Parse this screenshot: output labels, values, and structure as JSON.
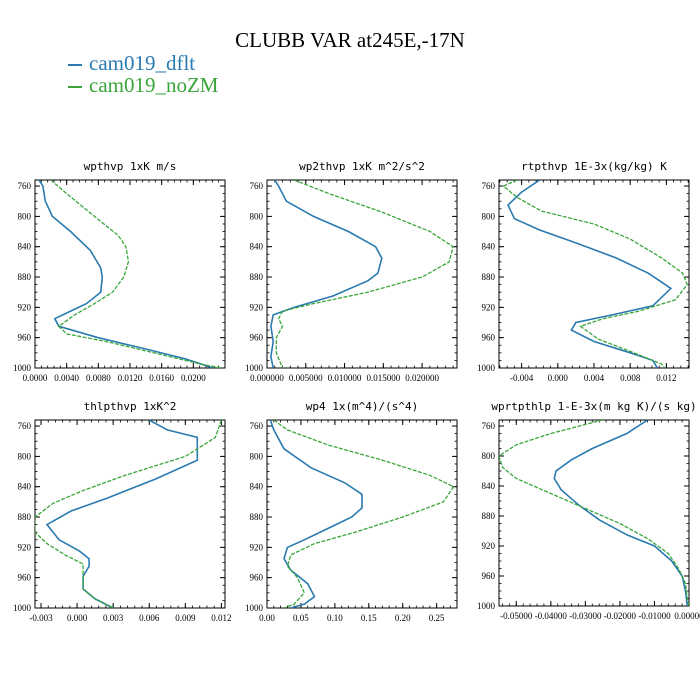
{
  "title": "CLUBB VAR at245E,-17N",
  "legend": [
    {
      "label": "cam019_dflt",
      "color": "#2a7ab0"
    },
    {
      "label": "cam019_noZM",
      "color": "#3aa63a"
    }
  ],
  "chart_data": [
    {
      "type": "line",
      "title": "wpthvp  1xK m/s",
      "xlim": [
        0.0,
        0.024
      ],
      "ylim": [
        1000,
        752
      ],
      "x_ticks": [
        "0.0000",
        "0.0040",
        "0.0080",
        "0.0120",
        "0.0160",
        "0.0200"
      ],
      "x_tick_values": [
        0.0,
        0.004,
        0.008,
        0.012,
        0.016,
        0.02
      ],
      "y_ticks": [
        "760",
        "800",
        "840",
        "880",
        "920",
        "960",
        "1000"
      ],
      "series": [
        {
          "values": [
            [
              0.0005,
              752
            ],
            [
              0.001,
              760
            ],
            [
              0.0013,
              780
            ],
            [
              0.0022,
              800
            ],
            [
              0.0045,
              820
            ],
            [
              0.007,
              845
            ],
            [
              0.0083,
              868
            ],
            [
              0.0085,
              880
            ],
            [
              0.0083,
              900
            ],
            [
              0.0065,
              915
            ],
            [
              0.0045,
              925
            ],
            [
              0.0025,
              935
            ],
            [
              0.003,
              945
            ],
            [
              0.008,
              960
            ],
            [
              0.014,
              975
            ],
            [
              0.019,
              988
            ],
            [
              0.0225,
              1000
            ]
          ]
        },
        {
          "values": [
            [
              0.002,
              752
            ],
            [
              0.004,
              770
            ],
            [
              0.0075,
              800
            ],
            [
              0.0105,
              825
            ],
            [
              0.0115,
              840
            ],
            [
              0.0118,
              860
            ],
            [
              0.0112,
              880
            ],
            [
              0.0098,
              900
            ],
            [
              0.0075,
              915
            ],
            [
              0.005,
              930
            ],
            [
              0.003,
              945
            ],
            [
              0.004,
              955
            ],
            [
              0.009,
              965
            ],
            [
              0.015,
              980
            ],
            [
              0.021,
              995
            ],
            [
              0.0235,
              1000
            ]
          ]
        }
      ]
    },
    {
      "type": "line",
      "title": "wp2thvp  1xK m^2/s^2",
      "xlim": [
        0.0,
        0.0245
      ],
      "ylim": [
        1000,
        752
      ],
      "x_ticks": [
        "0.000000",
        "0.005000",
        "0.010000",
        "0.015000",
        "0.020000"
      ],
      "x_tick_values": [
        0.0,
        0.005,
        0.01,
        0.015,
        0.02
      ],
      "y_ticks": [
        "760",
        "800",
        "840",
        "880",
        "920",
        "960",
        "1000"
      ],
      "series": [
        {
          "values": [
            [
              0.001,
              752
            ],
            [
              0.0015,
              760
            ],
            [
              0.0025,
              780
            ],
            [
              0.006,
              800
            ],
            [
              0.0105,
              820
            ],
            [
              0.014,
              840
            ],
            [
              0.0148,
              855
            ],
            [
              0.0143,
              875
            ],
            [
              0.013,
              885
            ],
            [
              0.0085,
              905
            ],
            [
              0.0035,
              920
            ],
            [
              0.0008,
              930
            ],
            [
              0.0005,
              945
            ],
            [
              0.0008,
              965
            ],
            [
              0.0005,
              985
            ],
            [
              0.0008,
              1000
            ]
          ]
        },
        {
          "values": [
            [
              0.0035,
              752
            ],
            [
              0.008,
              770
            ],
            [
              0.015,
              795
            ],
            [
              0.021,
              820
            ],
            [
              0.024,
              840
            ],
            [
              0.0235,
              860
            ],
            [
              0.02,
              880
            ],
            [
              0.013,
              900
            ],
            [
              0.006,
              915
            ],
            [
              0.002,
              925
            ],
            [
              0.0015,
              935
            ],
            [
              0.002,
              945
            ],
            [
              0.0012,
              960
            ],
            [
              0.0012,
              980
            ],
            [
              0.002,
              1000
            ]
          ]
        }
      ]
    },
    {
      "type": "line",
      "title": "rtpthvp  1E-3x(kg/kg) K",
      "xlim": [
        -0.0065,
        0.0145
      ],
      "ylim": [
        1000,
        752
      ],
      "x_ticks": [
        "-0.004",
        "0.000",
        "0.004",
        "0.008",
        "0.012"
      ],
      "x_tick_values": [
        -0.004,
        0.0,
        0.004,
        0.008,
        0.012
      ],
      "y_ticks": [
        "760",
        "800",
        "840",
        "880",
        "920",
        "960",
        "1000"
      ],
      "series": [
        {
          "values": [
            [
              -0.002,
              752
            ],
            [
              -0.004,
              768
            ],
            [
              -0.0055,
              785
            ],
            [
              -0.0048,
              803
            ],
            [
              -0.002,
              818
            ],
            [
              0.002,
              835
            ],
            [
              0.0065,
              855
            ],
            [
              0.01,
              875
            ],
            [
              0.0125,
              895
            ],
            [
              0.0105,
              918
            ],
            [
              0.006,
              930
            ],
            [
              0.002,
              940
            ],
            [
              0.0015,
              950
            ],
            [
              0.004,
              965
            ],
            [
              0.008,
              980
            ],
            [
              0.0105,
              990
            ],
            [
              0.011,
              1000
            ]
          ]
        },
        {
          "values": [
            [
              -0.0045,
              752
            ],
            [
              -0.006,
              760
            ],
            [
              -0.0045,
              775
            ],
            [
              -0.0018,
              793
            ],
            [
              0.004,
              810
            ],
            [
              0.008,
              830
            ],
            [
              0.0115,
              855
            ],
            [
              0.0138,
              875
            ],
            [
              0.0143,
              890
            ],
            [
              0.013,
              910
            ],
            [
              0.009,
              925
            ],
            [
              0.005,
              935
            ],
            [
              0.0025,
              945
            ],
            [
              0.0045,
              962
            ],
            [
              0.008,
              978
            ],
            [
              0.0115,
              995
            ],
            [
              0.0118,
              1000
            ]
          ]
        }
      ]
    },
    {
      "type": "line",
      "title": "thlpthvp  1xK^2",
      "xlim": [
        -0.0035,
        0.0123
      ],
      "ylim": [
        1000,
        752
      ],
      "x_ticks": [
        "-0.003",
        "0.000",
        "0.003",
        "0.006",
        "0.009",
        "0.012"
      ],
      "x_tick_values": [
        -0.003,
        0.0,
        0.003,
        0.006,
        0.009,
        0.012
      ],
      "y_ticks": [
        "760",
        "800",
        "840",
        "880",
        "920",
        "960",
        "1000"
      ],
      "series": [
        {
          "values": [
            [
              0.006,
              752
            ],
            [
              0.0075,
              765
            ],
            [
              0.01,
              775
            ],
            [
              0.01,
              805
            ],
            [
              0.0065,
              830
            ],
            [
              0.0025,
              855
            ],
            [
              -0.0005,
              872
            ],
            [
              -0.0025,
              890
            ],
            [
              -0.0015,
              910
            ],
            [
              0.0002,
              925
            ],
            [
              0.001,
              935
            ],
            [
              0.001,
              945
            ],
            [
              0.0005,
              958
            ],
            [
              0.0005,
              975
            ],
            [
              0.0015,
              988
            ],
            [
              0.003,
              1000
            ]
          ]
        },
        {
          "values": [
            [
              0.012,
              752
            ],
            [
              0.0115,
              775
            ],
            [
              0.009,
              800
            ],
            [
              0.004,
              825
            ],
            [
              0.0005,
              845
            ],
            [
              -0.002,
              862
            ],
            [
              -0.0035,
              880
            ],
            [
              -0.0035,
              900
            ],
            [
              -0.0025,
              915
            ],
            [
              -0.001,
              930
            ],
            [
              0.0005,
              942
            ],
            [
              0.0005,
              958
            ],
            [
              0.0005,
              975
            ],
            [
              0.0015,
              988
            ],
            [
              0.003,
              1000
            ]
          ]
        }
      ]
    },
    {
      "type": "line",
      "title": "wp4  1x(m^4)/(s^4)",
      "xlim": [
        0.0,
        0.28
      ],
      "ylim": [
        1000,
        752
      ],
      "x_ticks": [
        "0.00",
        "0.05",
        "0.10",
        "0.15",
        "0.20",
        "0.25"
      ],
      "x_tick_values": [
        0.0,
        0.05,
        0.1,
        0.15,
        0.2,
        0.25
      ],
      "y_ticks": [
        "760",
        "800",
        "840",
        "880",
        "920",
        "960",
        "1000"
      ],
      "series": [
        {
          "values": [
            [
              0.005,
              752
            ],
            [
              0.01,
              765
            ],
            [
              0.025,
              790
            ],
            [
              0.065,
              815
            ],
            [
              0.115,
              835
            ],
            [
              0.14,
              850
            ],
            [
              0.14,
              868
            ],
            [
              0.125,
              880
            ],
            [
              0.09,
              895
            ],
            [
              0.055,
              910
            ],
            [
              0.03,
              920
            ],
            [
              0.025,
              935
            ],
            [
              0.035,
              950
            ],
            [
              0.06,
              968
            ],
            [
              0.07,
              985
            ],
            [
              0.055,
              995
            ],
            [
              0.035,
              1000
            ]
          ]
        },
        {
          "values": [
            [
              0.01,
              752
            ],
            [
              0.03,
              765
            ],
            [
              0.09,
              785
            ],
            [
              0.17,
              805
            ],
            [
              0.24,
              825
            ],
            [
              0.275,
              840
            ],
            [
              0.26,
              860
            ],
            [
              0.2,
              880
            ],
            [
              0.13,
              900
            ],
            [
              0.07,
              915
            ],
            [
              0.035,
              930
            ],
            [
              0.03,
              945
            ],
            [
              0.045,
              960
            ],
            [
              0.055,
              980
            ],
            [
              0.04,
              995
            ],
            [
              0.025,
              1000
            ]
          ]
        }
      ]
    },
    {
      "type": "line",
      "title": "wprtpthlp  1-E-3x(m kg K)/(s kg)",
      "xlim": [
        -0.055,
        0.0
      ],
      "ylim": [
        1000,
        752
      ],
      "x_ticks": [
        "-0.05000",
        "-0.04000",
        "-0.03000",
        "-0.02000",
        "-0.01000",
        "0.00000"
      ],
      "x_tick_values": [
        -0.05,
        -0.04,
        -0.03,
        -0.02,
        -0.01,
        0.0
      ],
      "y_ticks": [
        "760",
        "800",
        "840",
        "880",
        "920",
        "960",
        "1000"
      ],
      "series": [
        {
          "values": [
            [
              -0.012,
              752
            ],
            [
              -0.018,
              770
            ],
            [
              -0.028,
              790
            ],
            [
              -0.034,
              805
            ],
            [
              -0.0385,
              820
            ],
            [
              -0.039,
              830
            ],
            [
              -0.037,
              845
            ],
            [
              -0.032,
              865
            ],
            [
              -0.026,
              885
            ],
            [
              -0.018,
              905
            ],
            [
              -0.01,
              920
            ],
            [
              -0.005,
              940
            ],
            [
              -0.002,
              960
            ],
            [
              -0.001,
              980
            ],
            [
              -0.0005,
              1000
            ]
          ]
        },
        {
          "values": [
            [
              -0.025,
              752
            ],
            [
              -0.04,
              770
            ],
            [
              -0.05,
              785
            ],
            [
              -0.055,
              800
            ],
            [
              -0.054,
              815
            ],
            [
              -0.05,
              830
            ],
            [
              -0.04,
              850
            ],
            [
              -0.03,
              870
            ],
            [
              -0.02,
              890
            ],
            [
              -0.012,
              910
            ],
            [
              -0.006,
              930
            ],
            [
              -0.003,
              950
            ],
            [
              -0.001,
              970
            ],
            [
              -0.0005,
              990
            ],
            [
              0.0,
              1000
            ]
          ]
        }
      ]
    }
  ]
}
